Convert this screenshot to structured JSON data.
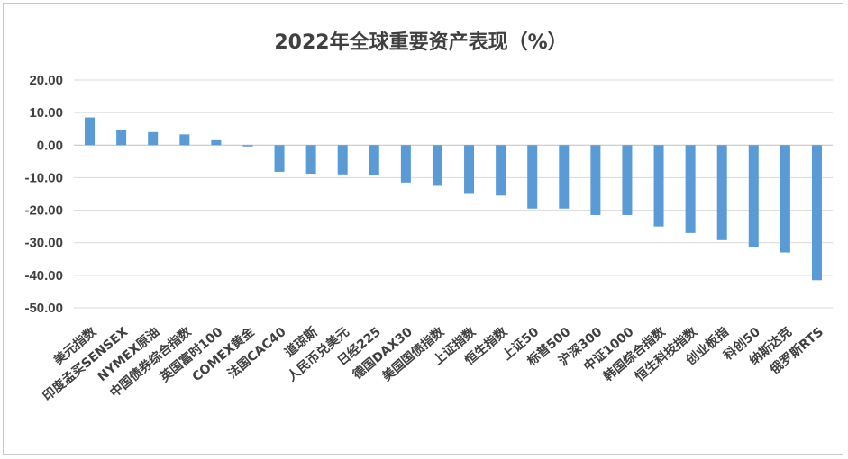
{
  "chart_data": {
    "type": "bar",
    "title": "2022年全球重要资产表现（%）",
    "xlabel": "",
    "ylabel": "",
    "ylim": [
      -50,
      20
    ],
    "yticks": [
      "20.00",
      "10.00",
      "0.00",
      "-10.00",
      "-20.00",
      "-30.00",
      "-40.00",
      "-50.00"
    ],
    "grid": true,
    "legend": "none",
    "bar_color": "#5B9BD5",
    "categories": [
      "美元指数",
      "印度孟买SENSEX",
      "NYMEX原油",
      "中国债券综合指数",
      "英国富时100",
      "COMEX黄金",
      "法国CAC40",
      "道琼斯",
      "人民币兑美元",
      "日经225",
      "德国DAX30",
      "美国国债指数",
      "上证指数",
      "恒生指数",
      "上证50",
      "标普500",
      "沪深300",
      "中证1000",
      "韩国综合指数",
      "恒生科技指数",
      "创业板指",
      "科创50",
      "纳斯达克",
      "俄罗斯RTS"
    ],
    "values": [
      8.5,
      4.8,
      4.0,
      3.3,
      1.5,
      -0.4,
      -8.2,
      -8.8,
      -9.0,
      -9.3,
      -11.5,
      -12.5,
      -15.0,
      -15.5,
      -19.5,
      -19.5,
      -21.5,
      -21.5,
      -25.0,
      -27.0,
      -29.2,
      -31.2,
      -33.0,
      -41.5
    ]
  }
}
